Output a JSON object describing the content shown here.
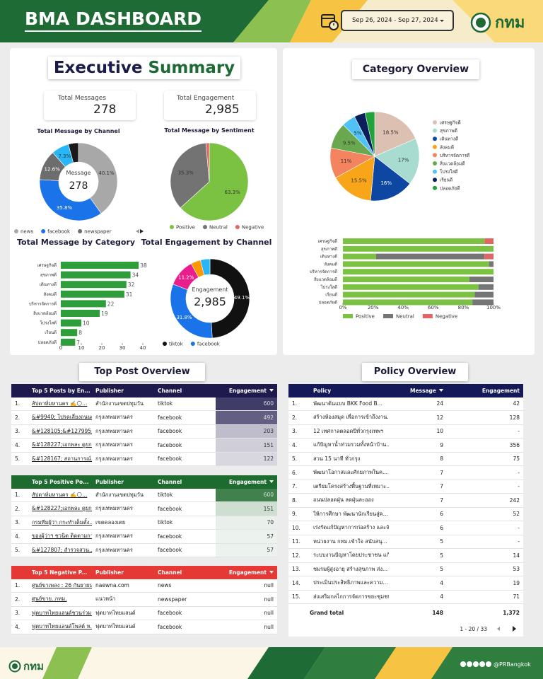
{
  "header": {
    "title": "BMA DASHBOARD",
    "date_range": "Sep 26, 2024 - Sep 27, 2024",
    "logo": "กทม"
  },
  "executive_summary": {
    "title_1": "Executive",
    "title_2": "Summary",
    "kpis": [
      {
        "label": "Total Messages",
        "value": 278
      },
      {
        "label": "Total Engagement",
        "value": "2,985"
      }
    ]
  },
  "chart_data": [
    {
      "type": "donut",
      "title": "Total Message by Channel",
      "center_label": "Message",
      "center_value": 278,
      "categories": [
        "news",
        "facebook",
        "newspaper",
        null,
        null
      ],
      "values": [
        40.1,
        35.8,
        12.6,
        7.3,
        4.2
      ],
      "value_labels": [
        "40.1%",
        "35.8%",
        "12.6%",
        "7.3%",
        null
      ],
      "colors": [
        "#a8a8a8",
        "#1a73e8",
        "#6d6d6d",
        "#29b6f6",
        "#1a1a1a"
      ]
    },
    {
      "type": "pie",
      "title": "Total Message by Sentiment",
      "categories": [
        "Positive",
        "Neutral",
        "Negative"
      ],
      "values": [
        63.3,
        35.3,
        1.4
      ],
      "value_labels": [
        "63.3%",
        "35.3%",
        null
      ],
      "colors": [
        "#7cc242",
        "#737373",
        "#e06666"
      ]
    },
    {
      "type": "hbar",
      "title": "Total Message by Category",
      "categories": [
        "เศรษฐกิจดี",
        "สุขภาพดี",
        "เดินทางดี",
        "สังคมดี",
        "บริหารจัดการดี",
        "สิ่งแวดล้อมดี",
        "โปร่งใสดี",
        "เรียนดี",
        "ปลอดภัยดี"
      ],
      "values": [
        38,
        34,
        32,
        31,
        22,
        19,
        10,
        8,
        7
      ],
      "color": "#2e9e3a",
      "xlim": [
        0,
        40
      ],
      "xticks": [
        0,
        10,
        20,
        30,
        40
      ]
    },
    {
      "type": "donut",
      "title": "Total Engagement by Channel",
      "center_label": "Engagement",
      "center_value": "2,985",
      "categories": [
        "tiktok",
        "facebook",
        null,
        null,
        null
      ],
      "values": [
        49.1,
        31.8,
        11.2,
        4.0,
        3.9
      ],
      "value_labels": [
        "49.1%",
        "31.8%",
        "11.2%",
        null,
        null
      ],
      "colors": [
        "#111111",
        "#1a73e8",
        "#e91e8c",
        "#ff9800",
        "#29b6f6"
      ]
    },
    {
      "type": "pie",
      "title": "Category Overview",
      "categories": [
        "เศรษฐกิจดี",
        "สุขภาพดี",
        "เดินทางดี",
        "สังคมดี",
        "บริหารจัดการดี",
        "สิ่งแวดล้อมดี",
        "โปร่งใสดี",
        "เรียนดี",
        "ปลอดภัยดี"
      ],
      "values": [
        18.5,
        17,
        16,
        15.5,
        11,
        9.5,
        5,
        4,
        3.5
      ],
      "value_labels": [
        "18.5%",
        "17%",
        "16%",
        "15.5%",
        "11%",
        "9.5%",
        "5%",
        null,
        null
      ],
      "colors": [
        "#dcc0b1",
        "#a8dcd1",
        "#0d47a1",
        "#f9a51a",
        "#f4845f",
        "#6aa84f",
        "#4fc3f7",
        "#0b1f5c",
        "#1fa33a"
      ]
    },
    {
      "type": "stacked_hbar",
      "categories": [
        "เศรษฐกิจดี",
        "สุขภาพดี",
        "เดินทางดี",
        "สังคมดี",
        "บริหารจัดการดี",
        "สิ่งแวดล้อมดี",
        "โปร่งใสดี",
        "เรียนดี",
        "ปลอดภัยดี"
      ],
      "series": [
        {
          "name": "Positive",
          "color": "#7cc242",
          "values": [
            94,
            100,
            22,
            97,
            100,
            84,
            90,
            87.5,
            86
          ]
        },
        {
          "name": "Neutral",
          "color": "#757575",
          "values": [
            0,
            0,
            72,
            3,
            0,
            16,
            10,
            12.5,
            14
          ]
        },
        {
          "name": "Negative",
          "color": "#e06666",
          "values": [
            6,
            0,
            6,
            0,
            0,
            0,
            0,
            0,
            0
          ]
        }
      ],
      "xlim": [
        0,
        100
      ],
      "xticks": [
        {
          "value": 0,
          "label": "0%"
        },
        {
          "value": 20,
          "label": "20%"
        },
        {
          "value": 40,
          "label": "40%"
        },
        {
          "value": 60,
          "label": "60%"
        },
        {
          "value": 80,
          "label": "80%"
        },
        {
          "value": 100,
          "label": "100%"
        }
      ]
    }
  ],
  "top_post_overview": {
    "title": "Top Post Overview",
    "tables": [
      {
        "columns": [
          "Top 5 Posts by En...",
          "Publisher",
          "Channel",
          "Engagement"
        ],
        "rows": [
          [
            "1.",
            "สัปดาห์มหานคร ✍️🌕...",
            "สำนักงานเขตปทุมวัน",
            "tiktok",
            600
          ],
          [
            "2.",
            "&#9940; โปรดเลี่ยงถนนด...",
            "กรุงเทพมหานคร",
            "facebook",
            492
          ],
          [
            "3.",
            "&#128105;&#127995;...",
            "กรุงเทพมหานคร",
            "facebook",
            203
          ],
          [
            "4.",
            "&#128227;เอกพละ ดูยก...",
            "กรุงเทพมหานคร",
            "facebook",
            151
          ],
          [
            "5.",
            "&#128167; สถานการณ์...",
            "กรุงเทพมหานคร",
            "facebook",
            122
          ]
        ]
      },
      {
        "columns": [
          "Top 5 Positive Po...",
          "Publisher",
          "Channel",
          "Engagement"
        ],
        "rows": [
          [
            "1.",
            "สัปดาห์มหานคร ✍️🌕...",
            "สำนักงานเขตปทุมวัน",
            "tiktok",
            600
          ],
          [
            "2.",
            "&#128227;เอกพละ ดูยก...",
            "กรุงเทพมหานคร",
            "facebook",
            151
          ],
          [
            "3.",
            "กรมทีมผู้ว่า กระทำเต็มตั้ง...",
            "เขตคลองเตย",
            "tiktok",
            70
          ],
          [
            "4.",
            "ของผู้ว่าฯ ชวนิต ติดตามการ...",
            "กรุงเทพมหานคร",
            "facebook",
            57
          ],
          [
            "5.",
            "&#127807; สำรวจสวน...",
            "กรุงเทพมหานคร",
            "facebook",
            57
          ]
        ]
      },
      {
        "columns": [
          "Top 5 Negative P...",
          "Publisher",
          "Channel",
          "Engagement"
        ],
        "rows": [
          [
            "1.",
            "ศูนย์ขาเพลง : 26 กันยายน...",
            "naewna.com",
            "news",
            "null"
          ],
          [
            "2.",
            "ศูนย์ขาย..กทม.",
            "แนวหน้า",
            "newspaper",
            "null"
          ],
          [
            "3.",
            "ฟุตบาทไทยแลนด์ชวนร่วมส...",
            "ฟุตบาทไทยแลนด์",
            "facebook",
            "null"
          ],
          [
            "4.",
            "ฟุตบาทไทยแลนด์โพสต์ ห...",
            "ฟุตบาทไทยแลนด์",
            "facebook",
            "null"
          ]
        ]
      }
    ]
  },
  "policy_overview": {
    "title": "Policy Overview",
    "columns": [
      "Policy",
      "Message",
      "Engagement"
    ],
    "rows": [
      [
        "1.",
        "พัฒนาต้นแบบ BKK Food B...",
        24,
        42
      ],
      [
        "2.",
        "สร้างห้องสมุด เพื่อการเข้าถึงงาน...",
        12,
        128
      ],
      [
        "3.",
        "12 เทศกาลตลอดปีทั่วกรุงเทพฯ",
        10,
        "-"
      ],
      [
        "4.",
        "แก้ปัญหาน้ำท่วมรวมทั้งหน้าบ้าน...",
        9,
        356
      ],
      [
        "5.",
        "สวน 15 นาที ทั่วกรุง",
        8,
        75
      ],
      [
        "6.",
        "พัฒนาโอกาสและศักยภาพในค...",
        7,
        "-"
      ],
      [
        "7.",
        "เตรียมโครงสร้างพื้นฐานที่เหมาะ...",
        7,
        "-"
      ],
      [
        "8.",
        "ถนนปลอดฝุ่น ลดฝุ่นละออง",
        7,
        242
      ],
      [
        "9.",
        "ให้การศึกษา พัฒนานักเรียนสู่ค...",
        6,
        52
      ],
      [
        "10.",
        "เร่งรัดแก้ปัญหาการก่อสร้าง และจั...",
        6,
        "-"
      ],
      [
        "11.",
        "หน่วยงาน กทม.เข้าใจ สนับสนุ...",
        5,
        "-"
      ],
      [
        "12.",
        "ระบบงานปัญหาโดยประชาชน แก้...",
        5,
        14
      ],
      [
        "13.",
        "ชมรมผู้สูงอายุ สร้างสุขภาพ ส่ง...",
        5,
        53
      ],
      [
        "14.",
        "ประเมินประสิทธิภาพและความ...",
        4,
        19
      ],
      [
        "15.",
        "ส่งเสริมกลไกการจัดการขยะชุมชน...",
        4,
        71
      ]
    ],
    "grand_total": {
      "label": "Grand total",
      "values": [
        148,
        "1,372"
      ]
    },
    "pagination": "1 - 20 / 33"
  },
  "footer": {
    "logo": "กทม",
    "handle": "@PRBangkok"
  }
}
